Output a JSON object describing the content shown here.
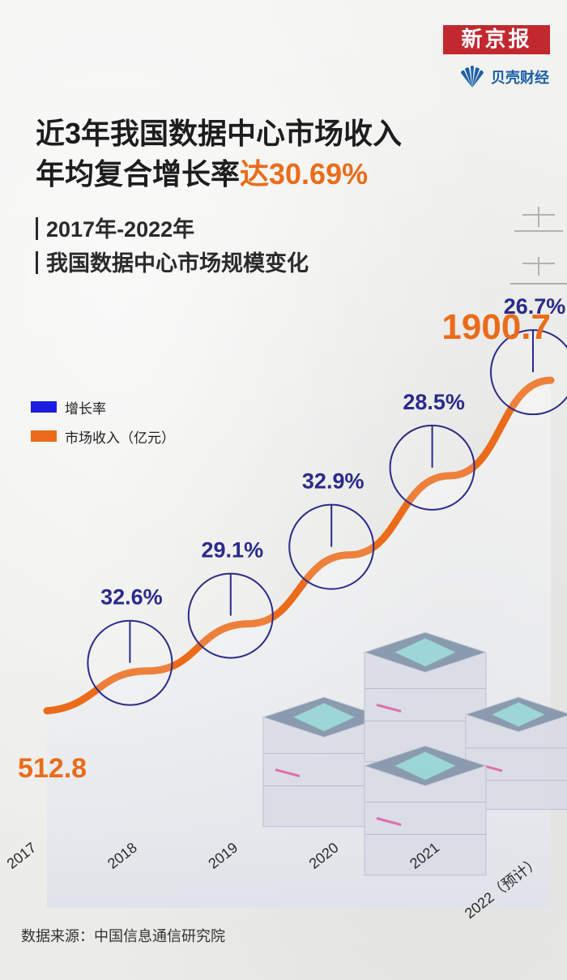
{
  "brand": {
    "newspaper": "新京报",
    "sub": "贝壳财经"
  },
  "headline": {
    "line1": "近3年我国数据中心市场收入",
    "line2_pre": "年均复合增长率",
    "line2_accent": "达30.69%"
  },
  "subtitle": {
    "line1": "2017年-2022年",
    "line2": "我国数据中心市场规模变化"
  },
  "legend": {
    "growth": "增长率",
    "revenue": "市场收入（亿元）"
  },
  "colors": {
    "revenue": "#ea6c1a",
    "growth": "#2a2a8c",
    "accent": "#ea6c1a",
    "brand": "#c3282f"
  },
  "source": "数据来源：中国信息通信研究院",
  "chart_data": {
    "type": "line",
    "categories": [
      "2017",
      "2018",
      "2019",
      "2020",
      "2021",
      "2022（预计）"
    ],
    "series": [
      {
        "name": "市场收入（亿元）",
        "values": [
          512.8,
          null,
          null,
          null,
          null,
          1900.7
        ]
      },
      {
        "name": "增长率",
        "values": [
          null,
          32.6,
          29.1,
          32.9,
          28.5,
          26.7
        ],
        "unit": "%"
      }
    ],
    "labels": {
      "revenue_start": "512.8",
      "revenue_end": "1900.7",
      "growth": [
        "32.6%",
        "29.1%",
        "32.9%",
        "28.5%",
        "26.7%"
      ]
    }
  }
}
